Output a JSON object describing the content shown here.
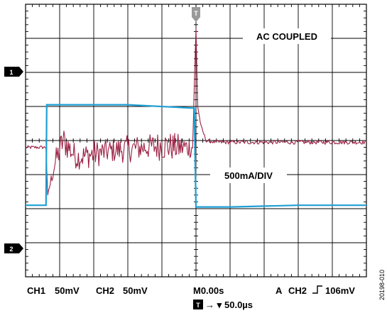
{
  "chart_data": {
    "type": "line",
    "grid": true,
    "divisions": {
      "x": 10,
      "y": 8
    },
    "x": {
      "unit": "µs",
      "per_div": 50.0,
      "range_divisions": [
        -5,
        5
      ]
    },
    "annotations": {
      "ac_coupled": "AC COUPLED",
      "current_scale": "500mA/DIV"
    },
    "channel_markers": {
      "ch1": "1",
      "ch2": "2",
      "trigger": "T"
    },
    "series": [
      {
        "channel": "CH1",
        "color": "#9b2144",
        "scale": "50mV",
        "coupling": "AC",
        "x_div": [
          -5.0,
          -4.4,
          -4.35,
          -4.15,
          -3.9,
          -3.5,
          -3.0,
          -2.5,
          -2.0,
          -1.5,
          -1.0,
          -0.5,
          -0.1,
          0.0,
          0.05,
          0.15,
          0.3,
          0.6,
          1.0,
          2.0,
          3.0,
          4.0,
          5.0
        ],
        "y_div": [
          -0.2,
          -0.2,
          -1.6,
          -0.7,
          0.0,
          -0.5,
          -0.4,
          -0.3,
          -0.25,
          -0.2,
          -0.15,
          -0.2,
          -0.2,
          3.3,
          1.0,
          0.4,
          0.0,
          -0.05,
          -0.05,
          -0.05,
          -0.05,
          -0.05,
          -0.05
        ],
        "noise_div": [
          0.05,
          0.05,
          0.0,
          0.35,
          0.45,
          0.35,
          0.4,
          0.35,
          0.4,
          0.35,
          0.45,
          0.4,
          0.3,
          0.0,
          0.0,
          0.05,
          0.05,
          0.06,
          0.06,
          0.06,
          0.06,
          0.06,
          0.06
        ]
      },
      {
        "channel": "CH2",
        "color": "#1e9fd4",
        "scale": "50mV",
        "x_div": [
          -5.0,
          -4.4,
          -4.38,
          -2.0,
          -0.05,
          0.0,
          1.0,
          3.0,
          5.0
        ],
        "y_div": [
          -1.9,
          -1.9,
          1.05,
          1.05,
          0.95,
          -1.95,
          -1.95,
          -1.9,
          -1.9
        ]
      }
    ]
  },
  "readout": {
    "ch1_label": "CH1",
    "ch1_scale": "50mV",
    "ch2_label": "CH2",
    "ch2_scale": "50mV",
    "timebase": "M0.00s",
    "trigger_prefix": "A",
    "trigger_channel": "CH2",
    "trigger_level": "106mV",
    "trigger_pos_arrows": "→ ▾",
    "trigger_pos_value": "50.0µs"
  },
  "figure_id": "20198-010",
  "colors": {
    "ch1": "#9b2144",
    "ch2": "#1e9fd4",
    "grid": "#000000",
    "marker": "#999999"
  }
}
